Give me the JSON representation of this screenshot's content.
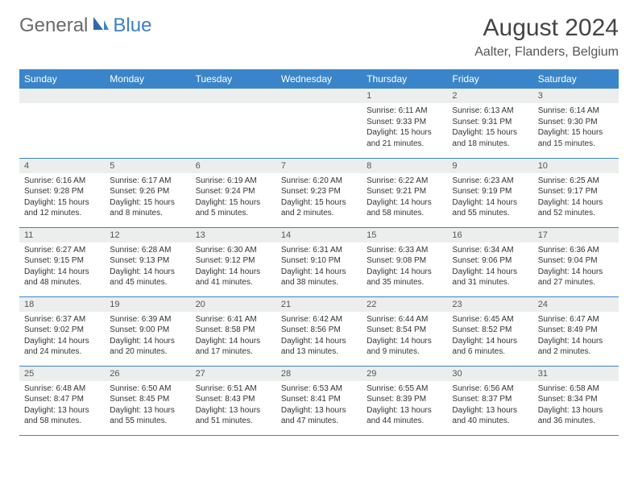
{
  "logo": {
    "text1": "General",
    "text2": "Blue"
  },
  "title": "August 2024",
  "location": "Aalter, Flanders, Belgium",
  "header_color": "#3a85c9",
  "header_text_color": "#ffffff",
  "daynum_bg": "#eceded",
  "border_color": "#3a85c9",
  "weekdays": [
    "Sunday",
    "Monday",
    "Tuesday",
    "Wednesday",
    "Thursday",
    "Friday",
    "Saturday"
  ],
  "weeks": [
    [
      null,
      null,
      null,
      null,
      {
        "n": "1",
        "sr": "6:11 AM",
        "ss": "9:33 PM",
        "dl": "15 hours and 21 minutes."
      },
      {
        "n": "2",
        "sr": "6:13 AM",
        "ss": "9:31 PM",
        "dl": "15 hours and 18 minutes."
      },
      {
        "n": "3",
        "sr": "6:14 AM",
        "ss": "9:30 PM",
        "dl": "15 hours and 15 minutes."
      }
    ],
    [
      {
        "n": "4",
        "sr": "6:16 AM",
        "ss": "9:28 PM",
        "dl": "15 hours and 12 minutes."
      },
      {
        "n": "5",
        "sr": "6:17 AM",
        "ss": "9:26 PM",
        "dl": "15 hours and 8 minutes."
      },
      {
        "n": "6",
        "sr": "6:19 AM",
        "ss": "9:24 PM",
        "dl": "15 hours and 5 minutes."
      },
      {
        "n": "7",
        "sr": "6:20 AM",
        "ss": "9:23 PM",
        "dl": "15 hours and 2 minutes."
      },
      {
        "n": "8",
        "sr": "6:22 AM",
        "ss": "9:21 PM",
        "dl": "14 hours and 58 minutes."
      },
      {
        "n": "9",
        "sr": "6:23 AM",
        "ss": "9:19 PM",
        "dl": "14 hours and 55 minutes."
      },
      {
        "n": "10",
        "sr": "6:25 AM",
        "ss": "9:17 PM",
        "dl": "14 hours and 52 minutes."
      }
    ],
    [
      {
        "n": "11",
        "sr": "6:27 AM",
        "ss": "9:15 PM",
        "dl": "14 hours and 48 minutes."
      },
      {
        "n": "12",
        "sr": "6:28 AM",
        "ss": "9:13 PM",
        "dl": "14 hours and 45 minutes."
      },
      {
        "n": "13",
        "sr": "6:30 AM",
        "ss": "9:12 PM",
        "dl": "14 hours and 41 minutes."
      },
      {
        "n": "14",
        "sr": "6:31 AM",
        "ss": "9:10 PM",
        "dl": "14 hours and 38 minutes."
      },
      {
        "n": "15",
        "sr": "6:33 AM",
        "ss": "9:08 PM",
        "dl": "14 hours and 35 minutes."
      },
      {
        "n": "16",
        "sr": "6:34 AM",
        "ss": "9:06 PM",
        "dl": "14 hours and 31 minutes."
      },
      {
        "n": "17",
        "sr": "6:36 AM",
        "ss": "9:04 PM",
        "dl": "14 hours and 27 minutes."
      }
    ],
    [
      {
        "n": "18",
        "sr": "6:37 AM",
        "ss": "9:02 PM",
        "dl": "14 hours and 24 minutes."
      },
      {
        "n": "19",
        "sr": "6:39 AM",
        "ss": "9:00 PM",
        "dl": "14 hours and 20 minutes."
      },
      {
        "n": "20",
        "sr": "6:41 AM",
        "ss": "8:58 PM",
        "dl": "14 hours and 17 minutes."
      },
      {
        "n": "21",
        "sr": "6:42 AM",
        "ss": "8:56 PM",
        "dl": "14 hours and 13 minutes."
      },
      {
        "n": "22",
        "sr": "6:44 AM",
        "ss": "8:54 PM",
        "dl": "14 hours and 9 minutes."
      },
      {
        "n": "23",
        "sr": "6:45 AM",
        "ss": "8:52 PM",
        "dl": "14 hours and 6 minutes."
      },
      {
        "n": "24",
        "sr": "6:47 AM",
        "ss": "8:49 PM",
        "dl": "14 hours and 2 minutes."
      }
    ],
    [
      {
        "n": "25",
        "sr": "6:48 AM",
        "ss": "8:47 PM",
        "dl": "13 hours and 58 minutes."
      },
      {
        "n": "26",
        "sr": "6:50 AM",
        "ss": "8:45 PM",
        "dl": "13 hours and 55 minutes."
      },
      {
        "n": "27",
        "sr": "6:51 AM",
        "ss": "8:43 PM",
        "dl": "13 hours and 51 minutes."
      },
      {
        "n": "28",
        "sr": "6:53 AM",
        "ss": "8:41 PM",
        "dl": "13 hours and 47 minutes."
      },
      {
        "n": "29",
        "sr": "6:55 AM",
        "ss": "8:39 PM",
        "dl": "13 hours and 44 minutes."
      },
      {
        "n": "30",
        "sr": "6:56 AM",
        "ss": "8:37 PM",
        "dl": "13 hours and 40 minutes."
      },
      {
        "n": "31",
        "sr": "6:58 AM",
        "ss": "8:34 PM",
        "dl": "13 hours and 36 minutes."
      }
    ]
  ],
  "labels": {
    "sunrise": "Sunrise:",
    "sunset": "Sunset:",
    "daylight": "Daylight:"
  }
}
